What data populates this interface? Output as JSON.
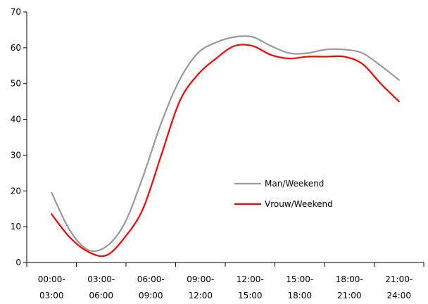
{
  "chart_data": {
    "type": "line",
    "categories": [
      "00:00-\n03:00",
      "03:00-\n06:00",
      "06:00-\n09:00",
      "09:00-\n12:00",
      "12:00-\n15:00",
      "15:00-\n18:00",
      "18:00-\n21:00",
      "21:00-\n24:00"
    ],
    "x": [
      0,
      0.25,
      0.5,
      0.75,
      1,
      1.25,
      1.5,
      1.75,
      2,
      2.25,
      2.5,
      2.75,
      3,
      3.25,
      3.5,
      3.75,
      4,
      4.25,
      4.5,
      4.75,
      5,
      5.25,
      5.5,
      5.75,
      6,
      6.25,
      6.5,
      6.75,
      7
    ],
    "ylim": [
      0,
      70
    ],
    "yticks": [
      0,
      10,
      20,
      30,
      40,
      50,
      60,
      70
    ],
    "series": [
      {
        "name": "Man/Weekend",
        "color": "#999999",
        "values": [
          19.5,
          9.0,
          3.5,
          4.5,
          11.0,
          24.0,
          39.0,
          51.0,
          58.5,
          61.5,
          63.0,
          63.0,
          60.5,
          58.5,
          58.5,
          59.5,
          59.5,
          58.5,
          55.0,
          51.0,
          null,
          null,
          null,
          null,
          null,
          null,
          null,
          null,
          null
        ]
      },
      {
        "name": "Vrouw/Weekend",
        "color": "#ff0000",
        "values": [
          13.5,
          7.0,
          3.0,
          2.0,
          7.0,
          15.0,
          30.0,
          45.0,
          52.5,
          57.0,
          60.5,
          60.5,
          58.0,
          57.0,
          57.5,
          57.5,
          57.5,
          55.5,
          50.0,
          45.0,
          null,
          null,
          null,
          null,
          null,
          null,
          null,
          null,
          null
        ]
      }
    ],
    "legend": "center-right",
    "grid": false
  }
}
